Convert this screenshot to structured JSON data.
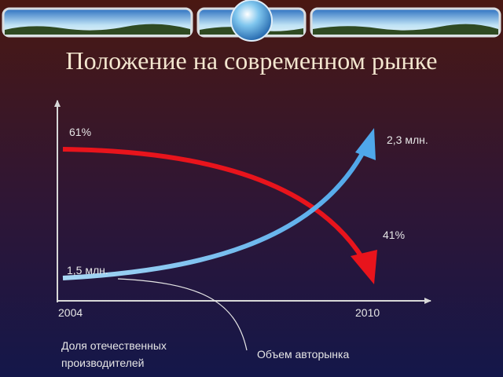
{
  "title": "Положение на современном рынке",
  "labels": {
    "share_start": "61%",
    "share_end": "41%",
    "volume_start": "1,5 млн.",
    "volume_end": "2,3 млн.",
    "year_start": "2004",
    "year_end": "2010"
  },
  "captions": {
    "share": [
      "Доля отечественных",
      "производителей"
    ],
    "volume": "Объем авторынка"
  }
}
